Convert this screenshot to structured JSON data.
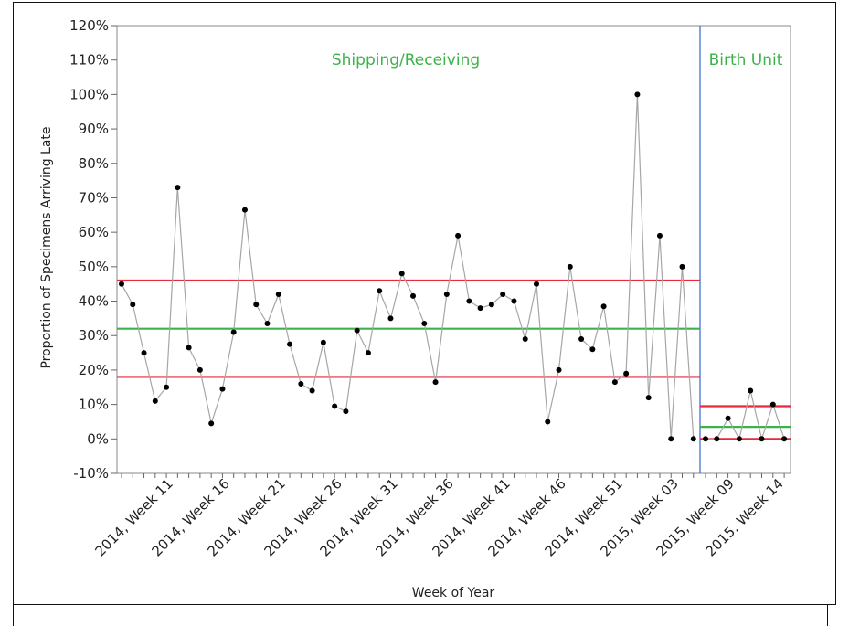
{
  "chart_data": {
    "type": "line",
    "title": "",
    "xlabel": "Week of Year",
    "ylabel": "Proportion of Specimens Arriving Late",
    "ylim": [
      -10,
      120
    ],
    "yticks": [
      "-10%",
      "0%",
      "10%",
      "20%",
      "30%",
      "40%",
      "50%",
      "60%",
      "70%",
      "80%",
      "90%",
      "100%",
      "110%",
      "120%"
    ],
    "grid": false,
    "x_tick_labels": [
      "2014, Week 11",
      "2014, Week 16",
      "2014, Week 21",
      "2014, Week 26",
      "2014, Week 31",
      "2014, Week 36",
      "2014, Week 41",
      "2014, Week 46",
      "2014, Week 51",
      "2015, Week 03",
      "2015, Week 09",
      "2015, Week 14"
    ],
    "phases": [
      {
        "name": "Shipping/Receiving",
        "label_color": "#3bb34a",
        "values": [
          45,
          39,
          25,
          11,
          15,
          73,
          26.5,
          20,
          4.5,
          14.5,
          31,
          66.5,
          39,
          33.5,
          42,
          27.5,
          16,
          14,
          28,
          9.5,
          8,
          31.5,
          25,
          43,
          35,
          48,
          41.5,
          33.5,
          16.5,
          42,
          59,
          40,
          38,
          39,
          42,
          40,
          29,
          45,
          5,
          20,
          50,
          29,
          26,
          38.5,
          16.5,
          19,
          100,
          12,
          59,
          0,
          50,
          0
        ],
        "center_line": 32,
        "upper_limit": 46,
        "lower_limit": 18
      },
      {
        "name": "Birth Unit",
        "label_color": "#3bb34a",
        "values": [
          0,
          0,
          6,
          0,
          14,
          0,
          10,
          0
        ],
        "center_line": 3.5,
        "upper_limit": 9.5,
        "lower_limit": 0
      }
    ],
    "colors": {
      "series_line": "#a6a6a6",
      "point": "#000000",
      "center_line": "#3bb34a",
      "control_limit": "#e8283c",
      "phase_divider": "#3366cc"
    }
  }
}
